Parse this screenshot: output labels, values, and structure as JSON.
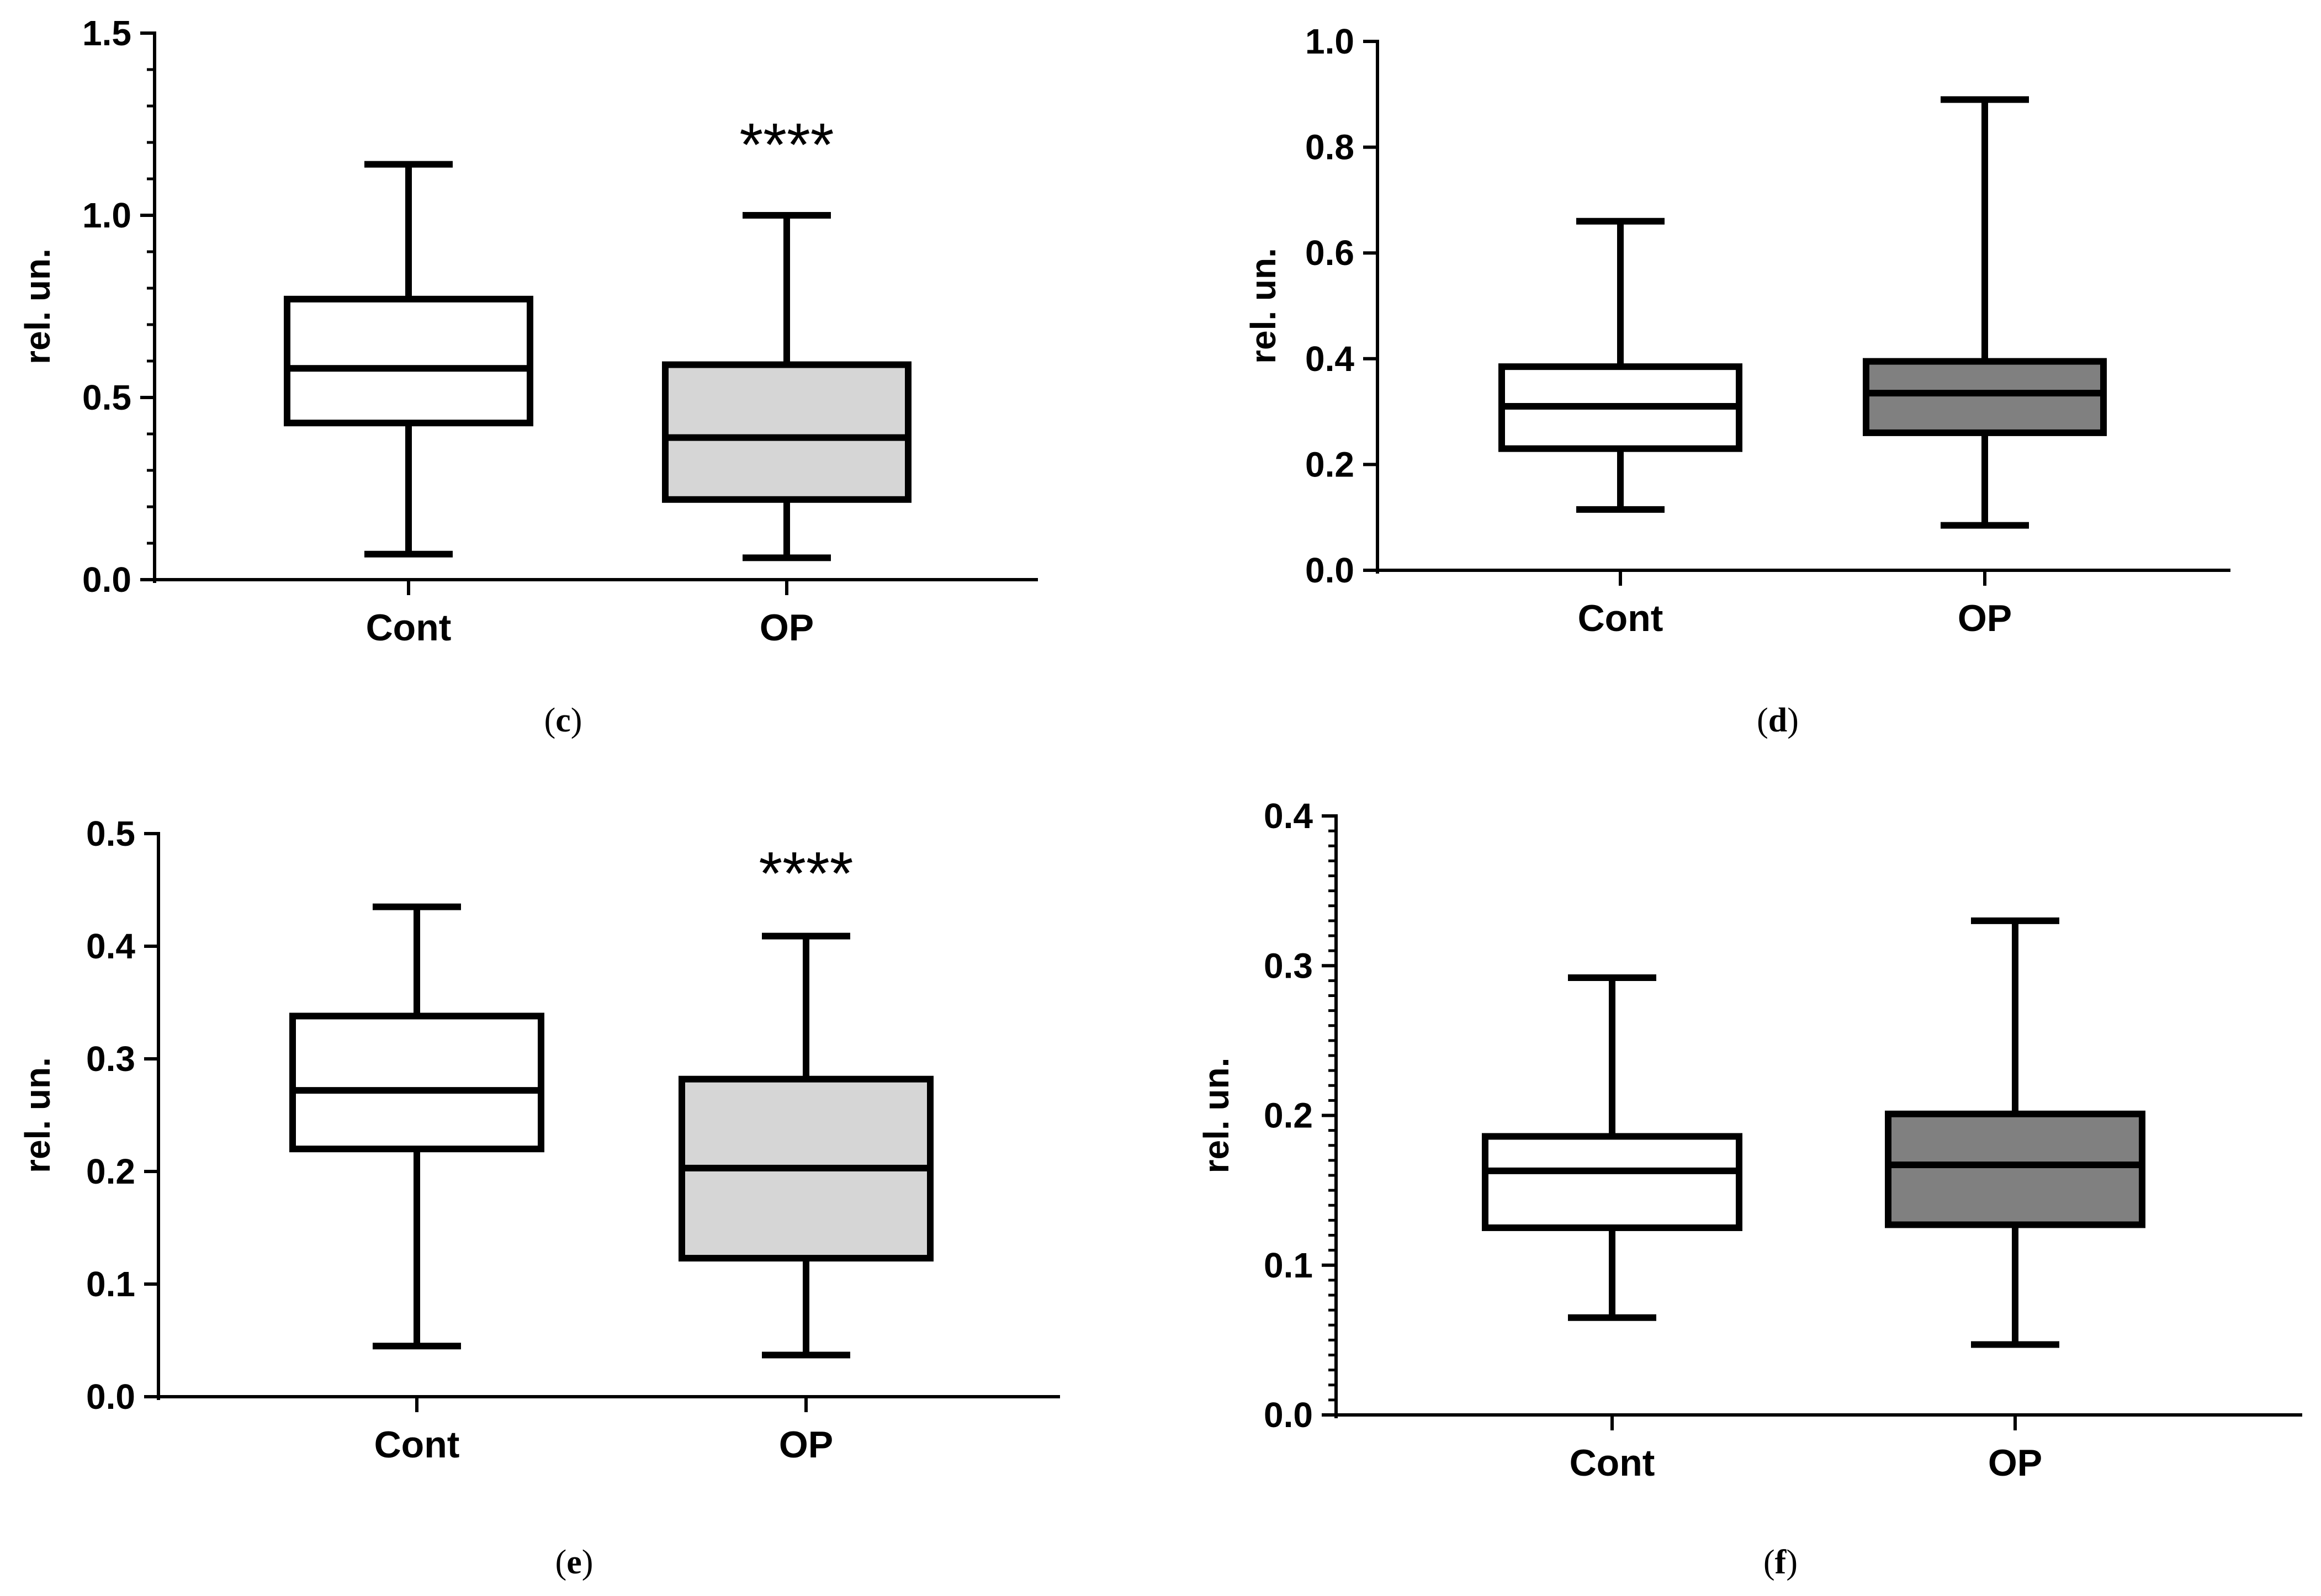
{
  "chart_data": [
    {
      "id": "c",
      "type": "box",
      "panel_label": "c",
      "ylabel": "rel. un.",
      "ylim": [
        0,
        1.5
      ],
      "yticks": [
        "0.0",
        "0.5",
        "1.0",
        "1.5"
      ],
      "minor_per_major": 5,
      "categories": [
        "Cont",
        "OP"
      ],
      "boxes": [
        {
          "name": "Cont",
          "min": 0.07,
          "q1": 0.43,
          "median": 0.58,
          "q3": 0.77,
          "max": 1.14,
          "fill": "#ffffff"
        },
        {
          "name": "OP",
          "min": 0.06,
          "q1": 0.22,
          "median": 0.39,
          "q3": 0.59,
          "max": 1.0,
          "fill": "#d6d6d6",
          "annotation": "****"
        }
      ]
    },
    {
      "id": "d",
      "type": "box",
      "panel_label": "d",
      "ylabel": "rel. un.",
      "ylim": [
        0,
        1.0
      ],
      "yticks": [
        "0.0",
        "0.2",
        "0.4",
        "0.6",
        "0.8",
        "1.0"
      ],
      "minor_per_major": 0,
      "categories": [
        "Cont",
        "OP"
      ],
      "boxes": [
        {
          "name": "Cont",
          "min": 0.115,
          "q1": 0.23,
          "median": 0.31,
          "q3": 0.385,
          "max": 0.66,
          "fill": "#ffffff"
        },
        {
          "name": "OP",
          "min": 0.085,
          "q1": 0.26,
          "median": 0.335,
          "q3": 0.395,
          "max": 0.89,
          "fill": "#808080"
        }
      ]
    },
    {
      "id": "e",
      "type": "box",
      "panel_label": "e",
      "ylabel": "rel. un.",
      "ylim": [
        0,
        0.5
      ],
      "yticks": [
        "0.0",
        "0.1",
        "0.2",
        "0.3",
        "0.4",
        "0.5"
      ],
      "minor_per_major": 0,
      "categories": [
        "Cont",
        "OP"
      ],
      "boxes": [
        {
          "name": "Cont",
          "min": 0.045,
          "q1": 0.22,
          "median": 0.272,
          "q3": 0.338,
          "max": 0.435,
          "fill": "#ffffff"
        },
        {
          "name": "OP",
          "min": 0.037,
          "q1": 0.123,
          "median": 0.203,
          "q3": 0.282,
          "max": 0.409,
          "fill": "#d6d6d6",
          "annotation": "****"
        }
      ]
    },
    {
      "id": "f",
      "type": "box",
      "panel_label": "f",
      "ylabel": "rel. un.",
      "ylim": [
        0,
        0.4
      ],
      "yticks": [
        "0.0",
        "0.1",
        "0.2",
        "0.3",
        "0.4"
      ],
      "minor_per_major": 10,
      "categories": [
        "Cont",
        "OP"
      ],
      "boxes": [
        {
          "name": "Cont",
          "min": 0.065,
          "q1": 0.125,
          "median": 0.163,
          "q3": 0.186,
          "max": 0.292,
          "fill": "#ffffff"
        },
        {
          "name": "OP",
          "min": 0.047,
          "q1": 0.127,
          "median": 0.167,
          "q3": 0.201,
          "max": 0.33,
          "fill": "#808080"
        }
      ]
    }
  ]
}
